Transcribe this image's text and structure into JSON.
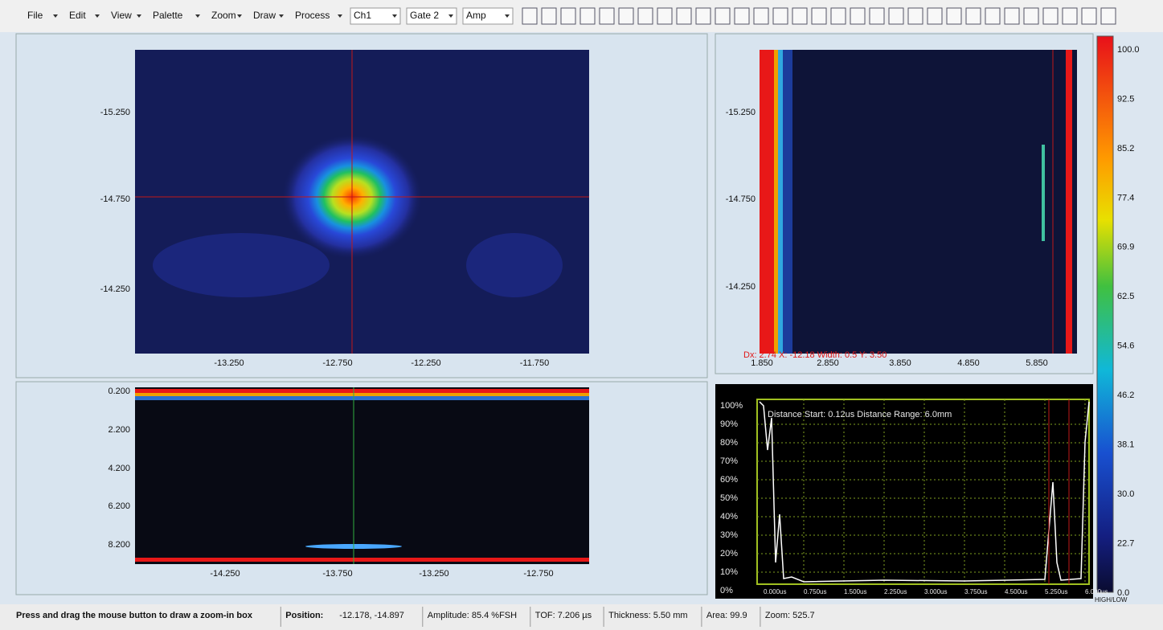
{
  "menu": [
    "File",
    "Edit",
    "View",
    "Palette",
    "Zoom",
    "Draw",
    "Process"
  ],
  "dropdowns": [
    "Ch1",
    "Gate 2",
    "Amp"
  ],
  "cscan": {
    "yticks": [
      "-15.250",
      "-14.750",
      "-14.250"
    ],
    "xticks": [
      "-13.250",
      "-12.750",
      "-12.250",
      "-11.750"
    ]
  },
  "bscan": {
    "yticks": [
      "-15.250",
      "-14.750",
      "-14.250"
    ],
    "xticks": [
      "1.850",
      "2.850",
      "3.850",
      "4.850",
      "5.850"
    ],
    "cursor_info": "Dx: 2.74   X: -12.18   Width: 0.5   Y: 3.50"
  },
  "dscan": {
    "yticks": [
      "0.200",
      "2.200",
      "4.200",
      "6.200",
      "8.200"
    ],
    "xticks": [
      "-14.250",
      "-13.750",
      "-13.250",
      "-12.750"
    ]
  },
  "ascan": {
    "title": "Distance Start: 0.12us Distance Range: 6.0mm",
    "yticks": [
      "100%",
      "90%",
      "80%",
      "70%",
      "60%",
      "50%",
      "40%",
      "30%",
      "20%",
      "10%",
      "0%"
    ],
    "xticks": [
      "0.000us",
      "0.750us",
      "1.500us",
      "2.250us",
      "3.000us",
      "3.750us",
      "4.500us",
      "5.250us",
      "6.000us"
    ]
  },
  "colorbar": {
    "labels": [
      "100.0",
      "92.5",
      "85.2",
      "77.4",
      "69.9",
      "62.5",
      "54.6",
      "46.2",
      "38.1",
      "30.0",
      "22.7",
      "0.0"
    ],
    "footer": "HIGH/LOW"
  },
  "status": {
    "hint": "Press and drag the mouse button to draw a zoom-in box",
    "position_label": "Position:",
    "position": "-12.178, -14.897",
    "amplitude": "Amplitude: 85.4 %FSH",
    "tof": "TOF: 7.206 µs",
    "thickness": "Thickness: 5.50 mm",
    "area": "Area: 99.9",
    "zoom": "Zoom: 525.7"
  }
}
